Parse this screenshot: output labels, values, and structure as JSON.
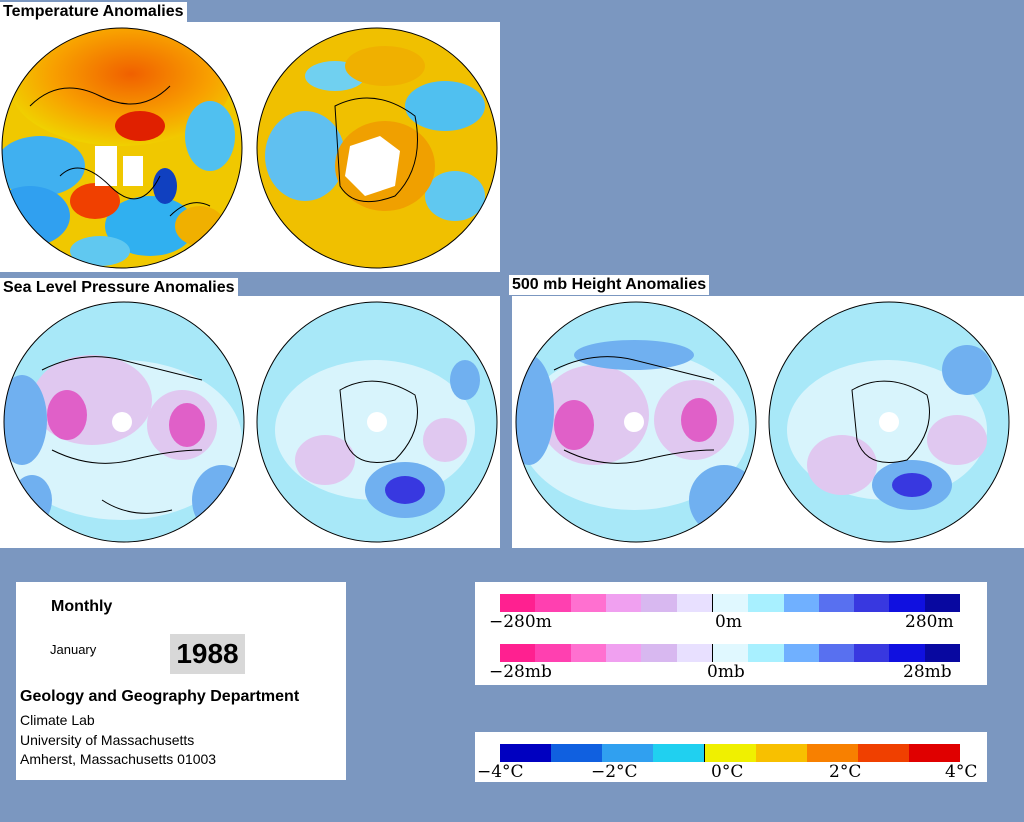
{
  "sections": {
    "temperature": "Temperature Anomalies",
    "slp": "Sea Level Pressure Anomalies",
    "height500": "500 mb Height Anomalies"
  },
  "info": {
    "period": "Monthly",
    "month": "January",
    "year": "1988",
    "department": "Geology and Geography Department",
    "lab": "Climate Lab",
    "university": "University of Massachusetts",
    "address": "Amherst, Massachusetts 01003"
  },
  "scales": {
    "height": {
      "min": "−280m",
      "mid": "0m",
      "max": "280m"
    },
    "pressure": {
      "min": "−28mb",
      "mid": "0mb",
      "max": "28mb"
    },
    "temperature": {
      "t1": "−4°C",
      "t2": "−2°C",
      "t3": "0°C",
      "t4": "2°C",
      "t5": "4°C"
    }
  },
  "colors": {
    "background": "#7b97c0",
    "anomaly_palette": [
      "#ff2090",
      "#ff40b0",
      "#ff70d0",
      "#f0a0f0",
      "#d8b8f0",
      "#e8e0ff",
      "#e0f8ff",
      "#a8f0ff",
      "#70b0ff",
      "#5870f0",
      "#3838e0",
      "#1010e0",
      "#0808a0"
    ],
    "temp_palette": [
      "#0000c0",
      "#1060e0",
      "#30a0f0",
      "#20d0f0",
      "#f0f000",
      "#f8c000",
      "#f88000",
      "#f04000",
      "#e00000"
    ]
  }
}
